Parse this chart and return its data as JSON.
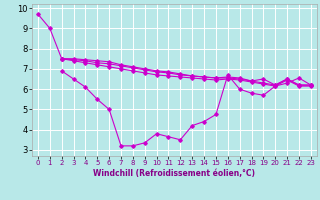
{
  "xlabel": "Windchill (Refroidissement éolien,°C)",
  "bg_color": "#b8e8e8",
  "grid_color": "#ffffff",
  "line_color": "#cc00cc",
  "xlim": [
    -0.5,
    23.5
  ],
  "ylim": [
    2.7,
    10.2
  ],
  "xticks": [
    0,
    1,
    2,
    3,
    4,
    5,
    6,
    7,
    8,
    9,
    10,
    11,
    12,
    13,
    14,
    15,
    16,
    17,
    18,
    19,
    20,
    21,
    22,
    23
  ],
  "yticks": [
    3,
    4,
    5,
    6,
    7,
    8,
    9,
    10
  ],
  "series": [
    {
      "x": [
        0,
        1,
        2,
        3,
        4,
        5,
        6,
        7,
        8,
        9,
        10,
        11,
        12,
        13,
        14,
        15,
        16,
        17,
        18,
        19,
        20,
        21,
        22,
        23
      ],
      "y": [
        9.7,
        9.0,
        7.5,
        7.5,
        7.45,
        7.4,
        7.35,
        7.2,
        7.1,
        7.0,
        6.9,
        6.85,
        6.75,
        6.65,
        6.6,
        6.55,
        6.6,
        6.55,
        6.4,
        6.5,
        6.2,
        6.5,
        6.2,
        6.2
      ]
    },
    {
      "x": [
        2,
        3,
        4,
        5,
        6,
        7,
        8,
        9,
        10,
        11,
        12,
        13,
        14,
        15,
        16,
        17,
        18,
        19,
        20,
        21,
        22,
        23
      ],
      "y": [
        7.5,
        7.45,
        7.4,
        7.3,
        7.25,
        7.15,
        7.05,
        6.95,
        6.85,
        6.8,
        6.7,
        6.65,
        6.6,
        6.55,
        6.55,
        6.5,
        6.4,
        6.3,
        6.2,
        6.5,
        6.2,
        6.2
      ]
    },
    {
      "x": [
        2,
        3,
        4,
        5,
        6,
        7,
        8,
        9,
        10,
        11,
        12,
        13,
        14,
        15,
        16,
        17,
        18,
        19,
        20,
        21,
        22,
        23
      ],
      "y": [
        7.5,
        7.4,
        7.3,
        7.2,
        7.1,
        7.0,
        6.9,
        6.8,
        6.7,
        6.65,
        6.6,
        6.55,
        6.5,
        6.45,
        6.5,
        6.45,
        6.35,
        6.25,
        6.15,
        6.45,
        6.15,
        6.15
      ]
    },
    {
      "x": [
        2,
        3,
        4,
        5,
        6,
        7,
        8,
        9,
        10,
        11,
        12,
        13,
        14,
        15,
        16,
        17,
        18,
        19,
        20,
        21,
        22,
        23
      ],
      "y": [
        6.9,
        6.5,
        6.1,
        5.5,
        5.0,
        3.2,
        3.2,
        3.35,
        3.8,
        3.65,
        3.5,
        4.2,
        4.4,
        4.75,
        6.7,
        6.0,
        5.8,
        5.7,
        6.15,
        6.3,
        6.55,
        6.2
      ]
    }
  ]
}
